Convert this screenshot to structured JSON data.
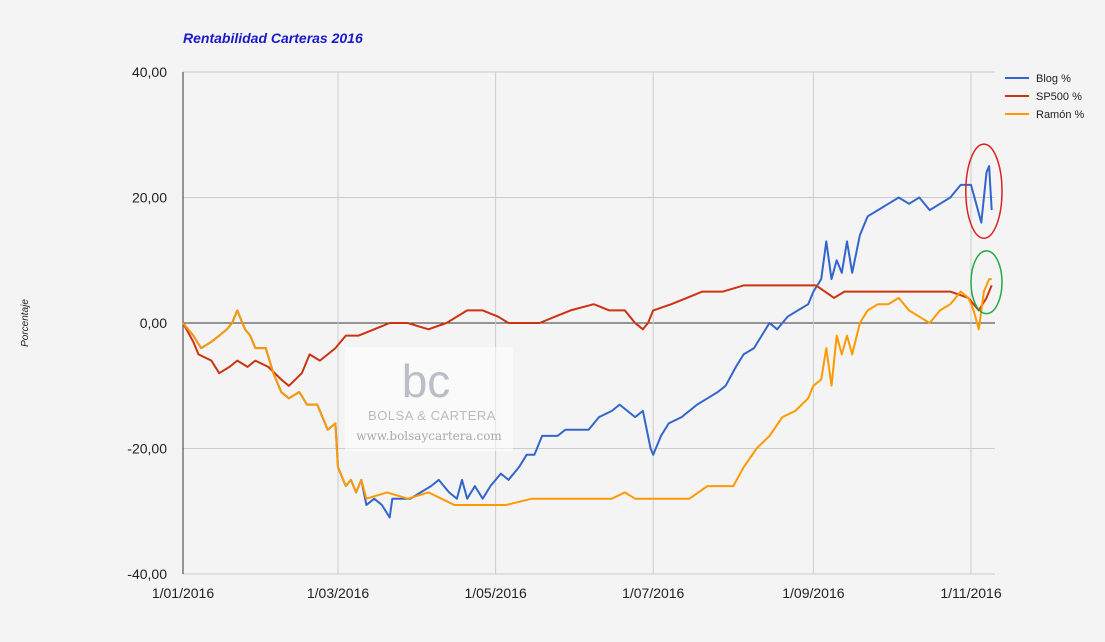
{
  "chart_data": {
    "type": "line",
    "title": "Rentabilidad Carteras 2016",
    "ylabel": "Porcentaje",
    "xlabel": "",
    "ylim": [
      -40,
      40
    ],
    "yticks": [
      {
        "value": 40,
        "label": "40,00"
      },
      {
        "value": 20,
        "label": "20,00"
      },
      {
        "value": 0,
        "label": "0,00"
      },
      {
        "value": -20,
        "label": "-20,00"
      },
      {
        "value": -40,
        "label": "-40,00"
      }
    ],
    "xlim": [
      "2016-01-01",
      "2016-11-10"
    ],
    "xticks": [
      {
        "date": "2016-01-01",
        "label": "1/01/2016"
      },
      {
        "date": "2016-03-01",
        "label": "1/03/2016"
      },
      {
        "date": "2016-05-01",
        "label": "1/05/2016"
      },
      {
        "date": "2016-07-01",
        "label": "1/07/2016"
      },
      {
        "date": "2016-09-01",
        "label": "1/09/2016"
      },
      {
        "date": "2016-11-01",
        "label": "1/11/2016"
      }
    ],
    "grid": true,
    "legend_position": "top-right",
    "series": [
      {
        "name": "Blog %",
        "color": "#3366cc",
        "points": [
          [
            "2016-01-01",
            0
          ],
          [
            "2016-01-05",
            -2
          ],
          [
            "2016-01-08",
            -4
          ],
          [
            "2016-01-12",
            -3
          ],
          [
            "2016-01-15",
            -2
          ],
          [
            "2016-01-18",
            -1
          ],
          [
            "2016-01-20",
            0
          ],
          [
            "2016-01-22",
            2
          ],
          [
            "2016-01-25",
            -1
          ],
          [
            "2016-01-27",
            -2
          ],
          [
            "2016-01-29",
            -4
          ],
          [
            "2016-02-02",
            -4
          ],
          [
            "2016-02-05",
            -8
          ],
          [
            "2016-02-08",
            -11
          ],
          [
            "2016-02-11",
            -12
          ],
          [
            "2016-02-15",
            -11
          ],
          [
            "2016-02-18",
            -13
          ],
          [
            "2016-02-22",
            -13
          ],
          [
            "2016-02-24",
            -15
          ],
          [
            "2016-02-26",
            -17
          ],
          [
            "2016-02-29",
            -16
          ],
          [
            "2016-03-01",
            -23
          ],
          [
            "2016-03-04",
            -26
          ],
          [
            "2016-03-06",
            -25
          ],
          [
            "2016-03-08",
            -27
          ],
          [
            "2016-03-10",
            -25
          ],
          [
            "2016-03-12",
            -29
          ],
          [
            "2016-03-15",
            -28
          ],
          [
            "2016-03-18",
            -29
          ],
          [
            "2016-03-21",
            -31
          ],
          [
            "2016-03-22",
            -28
          ],
          [
            "2016-03-25",
            -28
          ],
          [
            "2016-03-29",
            -28
          ],
          [
            "2016-04-02",
            -27
          ],
          [
            "2016-04-06",
            -26
          ],
          [
            "2016-04-09",
            -25
          ],
          [
            "2016-04-11",
            -26
          ],
          [
            "2016-04-13",
            -27
          ],
          [
            "2016-04-16",
            -28
          ],
          [
            "2016-04-18",
            -25
          ],
          [
            "2016-04-20",
            -28
          ],
          [
            "2016-04-23",
            -26
          ],
          [
            "2016-04-26",
            -28
          ],
          [
            "2016-04-29",
            -26
          ],
          [
            "2016-05-03",
            -24
          ],
          [
            "2016-05-06",
            -25
          ],
          [
            "2016-05-10",
            -23
          ],
          [
            "2016-05-13",
            -21
          ],
          [
            "2016-05-16",
            -21
          ],
          [
            "2016-05-19",
            -18
          ],
          [
            "2016-05-22",
            -18
          ],
          [
            "2016-05-25",
            -18
          ],
          [
            "2016-05-28",
            -17
          ],
          [
            "2016-06-01",
            -17
          ],
          [
            "2016-06-06",
            -17
          ],
          [
            "2016-06-10",
            -15
          ],
          [
            "2016-06-15",
            -14
          ],
          [
            "2016-06-18",
            -13
          ],
          [
            "2016-06-21",
            -14
          ],
          [
            "2016-06-24",
            -15
          ],
          [
            "2016-06-27",
            -14
          ],
          [
            "2016-06-30",
            -20
          ],
          [
            "2016-07-01",
            -21
          ],
          [
            "2016-07-04",
            -18
          ],
          [
            "2016-07-07",
            -16
          ],
          [
            "2016-07-12",
            -15
          ],
          [
            "2016-07-18",
            -13
          ],
          [
            "2016-07-22",
            -12
          ],
          [
            "2016-07-26",
            -11
          ],
          [
            "2016-07-29",
            -10
          ],
          [
            "2016-08-02",
            -7
          ],
          [
            "2016-08-05",
            -5
          ],
          [
            "2016-08-09",
            -4
          ],
          [
            "2016-08-12",
            -2
          ],
          [
            "2016-08-15",
            0
          ],
          [
            "2016-08-18",
            -1
          ],
          [
            "2016-08-22",
            1
          ],
          [
            "2016-08-26",
            2
          ],
          [
            "2016-08-30",
            3
          ],
          [
            "2016-09-01",
            5
          ],
          [
            "2016-09-04",
            7
          ],
          [
            "2016-09-06",
            13
          ],
          [
            "2016-09-08",
            7
          ],
          [
            "2016-09-10",
            10
          ],
          [
            "2016-09-12",
            8
          ],
          [
            "2016-09-14",
            13
          ],
          [
            "2016-09-16",
            8
          ],
          [
            "2016-09-19",
            14
          ],
          [
            "2016-09-22",
            17
          ],
          [
            "2016-09-26",
            18
          ],
          [
            "2016-09-30",
            19
          ],
          [
            "2016-10-04",
            20
          ],
          [
            "2016-10-08",
            19
          ],
          [
            "2016-10-12",
            20
          ],
          [
            "2016-10-16",
            18
          ],
          [
            "2016-10-20",
            19
          ],
          [
            "2016-10-24",
            20
          ],
          [
            "2016-10-28",
            22
          ],
          [
            "2016-11-01",
            22
          ],
          [
            "2016-11-03",
            19
          ],
          [
            "2016-11-05",
            16
          ],
          [
            "2016-11-07",
            24
          ],
          [
            "2016-11-08",
            25
          ],
          [
            "2016-11-09",
            18
          ]
        ]
      },
      {
        "name": "SP500 %",
        "color": "#cc3311",
        "points": [
          [
            "2016-01-01",
            0
          ],
          [
            "2016-01-05",
            -3
          ],
          [
            "2016-01-07",
            -5
          ],
          [
            "2016-01-12",
            -6
          ],
          [
            "2016-01-15",
            -8
          ],
          [
            "2016-01-19",
            -7
          ],
          [
            "2016-01-22",
            -6
          ],
          [
            "2016-01-26",
            -7
          ],
          [
            "2016-01-29",
            -6
          ],
          [
            "2016-02-03",
            -7
          ],
          [
            "2016-02-08",
            -9
          ],
          [
            "2016-02-11",
            -10
          ],
          [
            "2016-02-16",
            -8
          ],
          [
            "2016-02-19",
            -5
          ],
          [
            "2016-02-23",
            -6
          ],
          [
            "2016-02-26",
            -5
          ],
          [
            "2016-02-29",
            -4
          ],
          [
            "2016-03-04",
            -2
          ],
          [
            "2016-03-09",
            -2
          ],
          [
            "2016-03-15",
            -1
          ],
          [
            "2016-03-21",
            0
          ],
          [
            "2016-03-28",
            0
          ],
          [
            "2016-04-05",
            -1
          ],
          [
            "2016-04-12",
            0
          ],
          [
            "2016-04-20",
            2
          ],
          [
            "2016-04-26",
            2
          ],
          [
            "2016-05-02",
            1
          ],
          [
            "2016-05-06",
            0
          ],
          [
            "2016-05-12",
            0
          ],
          [
            "2016-05-18",
            0
          ],
          [
            "2016-05-24",
            1
          ],
          [
            "2016-05-30",
            2
          ],
          [
            "2016-06-08",
            3
          ],
          [
            "2016-06-14",
            2
          ],
          [
            "2016-06-20",
            2
          ],
          [
            "2016-06-24",
            0
          ],
          [
            "2016-06-27",
            -1
          ],
          [
            "2016-06-29",
            0
          ],
          [
            "2016-07-01",
            2
          ],
          [
            "2016-07-08",
            3
          ],
          [
            "2016-07-14",
            4
          ],
          [
            "2016-07-20",
            5
          ],
          [
            "2016-07-28",
            5
          ],
          [
            "2016-08-05",
            6
          ],
          [
            "2016-08-15",
            6
          ],
          [
            "2016-08-25",
            6
          ],
          [
            "2016-09-02",
            6
          ],
          [
            "2016-09-09",
            4
          ],
          [
            "2016-09-13",
            5
          ],
          [
            "2016-09-20",
            5
          ],
          [
            "2016-09-27",
            5
          ],
          [
            "2016-10-04",
            5
          ],
          [
            "2016-10-11",
            5
          ],
          [
            "2016-10-18",
            5
          ],
          [
            "2016-10-24",
            5
          ],
          [
            "2016-10-31",
            4
          ],
          [
            "2016-11-02",
            3
          ],
          [
            "2016-11-04",
            2
          ],
          [
            "2016-11-07",
            4
          ],
          [
            "2016-11-09",
            6
          ]
        ]
      },
      {
        "name": "Ramón %",
        "color": "#ff9900",
        "points": [
          [
            "2016-01-01",
            0
          ],
          [
            "2016-01-05",
            -2
          ],
          [
            "2016-01-08",
            -4
          ],
          [
            "2016-01-12",
            -3
          ],
          [
            "2016-01-15",
            -2
          ],
          [
            "2016-01-18",
            -1
          ],
          [
            "2016-01-20",
            0
          ],
          [
            "2016-01-22",
            2
          ],
          [
            "2016-01-25",
            -1
          ],
          [
            "2016-01-27",
            -2
          ],
          [
            "2016-01-29",
            -4
          ],
          [
            "2016-02-02",
            -4
          ],
          [
            "2016-02-05",
            -8
          ],
          [
            "2016-02-08",
            -11
          ],
          [
            "2016-02-11",
            -12
          ],
          [
            "2016-02-15",
            -11
          ],
          [
            "2016-02-18",
            -13
          ],
          [
            "2016-02-22",
            -13
          ],
          [
            "2016-02-24",
            -15
          ],
          [
            "2016-02-26",
            -17
          ],
          [
            "2016-02-29",
            -16
          ],
          [
            "2016-03-01",
            -23
          ],
          [
            "2016-03-04",
            -26
          ],
          [
            "2016-03-06",
            -25
          ],
          [
            "2016-03-08",
            -27
          ],
          [
            "2016-03-10",
            -25
          ],
          [
            "2016-03-12",
            -28
          ],
          [
            "2016-03-20",
            -27
          ],
          [
            "2016-03-28",
            -28
          ],
          [
            "2016-04-05",
            -27
          ],
          [
            "2016-04-10",
            -28
          ],
          [
            "2016-04-15",
            -29
          ],
          [
            "2016-04-25",
            -29
          ],
          [
            "2016-05-05",
            -29
          ],
          [
            "2016-05-15",
            -28
          ],
          [
            "2016-05-25",
            -28
          ],
          [
            "2016-06-05",
            -28
          ],
          [
            "2016-06-15",
            -28
          ],
          [
            "2016-06-20",
            -27
          ],
          [
            "2016-06-24",
            -28
          ],
          [
            "2016-06-28",
            -28
          ],
          [
            "2016-07-05",
            -28
          ],
          [
            "2016-07-15",
            -28
          ],
          [
            "2016-07-22",
            -26
          ],
          [
            "2016-07-28",
            -26
          ],
          [
            "2016-08-01",
            -26
          ],
          [
            "2016-08-05",
            -23
          ],
          [
            "2016-08-10",
            -20
          ],
          [
            "2016-08-15",
            -18
          ],
          [
            "2016-08-20",
            -15
          ],
          [
            "2016-08-25",
            -14
          ],
          [
            "2016-08-30",
            -12
          ],
          [
            "2016-09-01",
            -10
          ],
          [
            "2016-09-04",
            -9
          ],
          [
            "2016-09-06",
            -4
          ],
          [
            "2016-09-08",
            -10
          ],
          [
            "2016-09-10",
            -2
          ],
          [
            "2016-09-12",
            -5
          ],
          [
            "2016-09-14",
            -2
          ],
          [
            "2016-09-16",
            -5
          ],
          [
            "2016-09-19",
            0
          ],
          [
            "2016-09-22",
            2
          ],
          [
            "2016-09-26",
            3
          ],
          [
            "2016-09-30",
            3
          ],
          [
            "2016-10-04",
            4
          ],
          [
            "2016-10-08",
            2
          ],
          [
            "2016-10-12",
            1
          ],
          [
            "2016-10-16",
            0
          ],
          [
            "2016-10-20",
            2
          ],
          [
            "2016-10-24",
            3
          ],
          [
            "2016-10-28",
            5
          ],
          [
            "2016-10-31",
            4
          ],
          [
            "2016-11-02",
            2
          ],
          [
            "2016-11-04",
            -1
          ],
          [
            "2016-11-06",
            5
          ],
          [
            "2016-11-08",
            7
          ],
          [
            "2016-11-09",
            7
          ]
        ]
      }
    ],
    "annotations": [
      {
        "type": "circle",
        "color": "#dd2222",
        "center": [
          "2016-11-06",
          21
        ],
        "rx_days": 7,
        "ry_value": 7.5
      },
      {
        "type": "circle",
        "color": "#22aa44",
        "center": [
          "2016-11-07",
          6.5
        ],
        "rx_days": 6,
        "ry_value": 5
      }
    ]
  },
  "watermark": {
    "logo": "bc",
    "brand": "BOLSA & CARTERA",
    "url": "www.bolsaycartera.com"
  }
}
